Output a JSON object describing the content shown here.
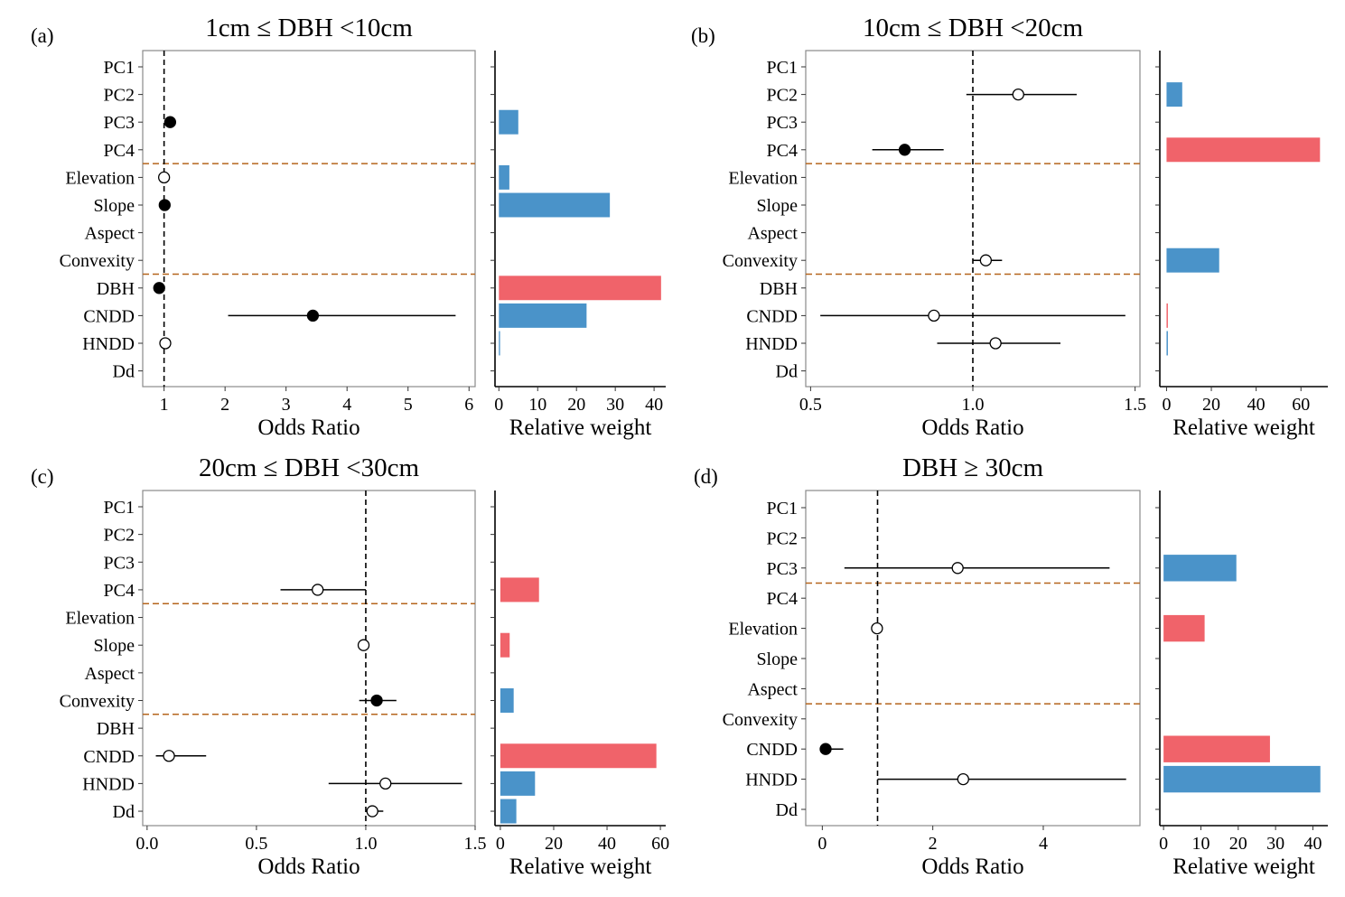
{
  "chart_data": [
    {
      "type": "forest-bar",
      "panel_label": "(a)",
      "title": "1cm ≤ DBH <10cm",
      "categories": [
        "PC1",
        "PC2",
        "PC3",
        "PC4",
        "Elevation",
        "Slope",
        "Aspect",
        "Convexity",
        "DBH",
        "CNDD",
        "HNDD",
        "Dd"
      ],
      "group_breaks_after": [
        "PC4",
        "Convexity"
      ],
      "odds_ratio": {
        "xlabel": "Odds Ratio",
        "xlim": [
          0.65,
          6.1
        ],
        "ticks": [
          1,
          2,
          3,
          4,
          5,
          6
        ],
        "tick_labels": [
          "1",
          "2",
          "3",
          "4",
          "5",
          "6"
        ],
        "reference": 1,
        "points": [
          {
            "var": "PC3",
            "or": 1.1,
            "lo": 1.07,
            "hi": 1.13,
            "significant": true
          },
          {
            "var": "Elevation",
            "or": 1.0,
            "lo": 0.99,
            "hi": 1.01,
            "significant": false
          },
          {
            "var": "Slope",
            "or": 1.01,
            "lo": 0.99,
            "hi": 1.03,
            "significant": true
          },
          {
            "var": "DBH",
            "or": 0.92,
            "lo": 0.9,
            "hi": 0.94,
            "significant": true
          },
          {
            "var": "CNDD",
            "or": 3.44,
            "lo": 2.05,
            "hi": 5.78,
            "significant": true
          },
          {
            "var": "HNDD",
            "or": 1.02,
            "lo": 0.95,
            "hi": 1.1,
            "significant": false
          }
        ]
      },
      "relative_weight": {
        "xlabel": "Relative weight",
        "xlim": [
          -1,
          43
        ],
        "ticks": [
          0,
          10,
          20,
          30,
          40
        ],
        "tick_labels": [
          "0",
          "10",
          "20",
          "30",
          "40"
        ],
        "bars": [
          {
            "var": "PC3",
            "value": 5,
            "color": "#4a93c9"
          },
          {
            "var": "Elevation",
            "value": 2.7,
            "color": "#4a93c9"
          },
          {
            "var": "Slope",
            "value": 28.6,
            "color": "#4a93c9"
          },
          {
            "var": "DBH",
            "value": 41.8,
            "color": "#f0636a"
          },
          {
            "var": "CNDD",
            "value": 22.6,
            "color": "#4a93c9"
          },
          {
            "var": "HNDD",
            "value": 0.3,
            "color": "#4a93c9"
          }
        ]
      }
    },
    {
      "type": "forest-bar",
      "panel_label": "(b)",
      "title": "10cm ≤ DBH <20cm",
      "categories": [
        "PC1",
        "PC2",
        "PC3",
        "PC4",
        "Elevation",
        "Slope",
        "Aspect",
        "Convexity",
        "DBH",
        "CNDD",
        "HNDD",
        "Dd"
      ],
      "group_breaks_after": [
        "PC4",
        "Convexity"
      ],
      "odds_ratio": {
        "xlabel": "Odds Ratio",
        "xlim": [
          0.485,
          1.515
        ],
        "ticks": [
          0.5,
          1.0,
          1.5
        ],
        "tick_labels": [
          "0.5",
          "1.0",
          "1.5"
        ],
        "reference": 1,
        "points": [
          {
            "var": "PC2",
            "or": 1.14,
            "lo": 0.98,
            "hi": 1.32,
            "significant": false
          },
          {
            "var": "PC4",
            "or": 0.79,
            "lo": 0.69,
            "hi": 0.91,
            "significant": true
          },
          {
            "var": "Convexity",
            "or": 1.04,
            "lo": 1.0,
            "hi": 1.09,
            "significant": false
          },
          {
            "var": "CNDD",
            "or": 0.88,
            "lo": 0.53,
            "hi": 1.47,
            "significant": false
          },
          {
            "var": "HNDD",
            "or": 1.07,
            "lo": 0.89,
            "hi": 1.27,
            "significant": false
          }
        ]
      },
      "relative_weight": {
        "xlabel": "Relative weight",
        "xlim": [
          -3,
          72
        ],
        "ticks": [
          0,
          20,
          40,
          60
        ],
        "tick_labels": [
          "0",
          "20",
          "40",
          "60"
        ],
        "bars": [
          {
            "var": "PC2",
            "value": 7,
            "color": "#4a93c9"
          },
          {
            "var": "PC4",
            "value": 68.5,
            "color": "#f0636a"
          },
          {
            "var": "Convexity",
            "value": 23.5,
            "color": "#4a93c9"
          },
          {
            "var": "CNDD",
            "value": 0.6,
            "color": "#f0636a"
          },
          {
            "var": "HNDD",
            "value": 0.6,
            "color": "#4a93c9"
          }
        ]
      }
    },
    {
      "type": "forest-bar",
      "panel_label": "(c)",
      "title": "20cm ≤ DBH <30cm",
      "categories": [
        "PC1",
        "PC2",
        "PC3",
        "PC4",
        "Elevation",
        "Slope",
        "Aspect",
        "Convexity",
        "DBH",
        "CNDD",
        "HNDD",
        "Dd"
      ],
      "group_breaks_after": [
        "PC4",
        "Convexity"
      ],
      "odds_ratio": {
        "xlabel": "Odds Ratio",
        "xlim": [
          -0.02,
          1.5
        ],
        "ticks": [
          0.0,
          0.5,
          1.0,
          1.5
        ],
        "tick_labels": [
          "0.0",
          "0.5",
          "1.0",
          "1.5"
        ],
        "reference": 1,
        "points": [
          {
            "var": "PC4",
            "or": 0.78,
            "lo": 0.61,
            "hi": 1.0,
            "significant": false
          },
          {
            "var": "Slope",
            "or": 0.99,
            "lo": 0.98,
            "hi": 1.0,
            "significant": false
          },
          {
            "var": "Convexity",
            "or": 1.05,
            "lo": 0.97,
            "hi": 1.14,
            "significant": true
          },
          {
            "var": "CNDD",
            "or": 0.1,
            "lo": 0.04,
            "hi": 0.27,
            "significant": false
          },
          {
            "var": "HNDD",
            "or": 1.09,
            "lo": 0.83,
            "hi": 1.44,
            "significant": false
          },
          {
            "var": "Dd",
            "or": 1.03,
            "lo": 1.0,
            "hi": 1.08,
            "significant": false
          }
        ]
      },
      "relative_weight": {
        "xlabel": "Relative weight",
        "xlim": [
          -2,
          62
        ],
        "ticks": [
          0,
          20,
          40,
          60
        ],
        "tick_labels": [
          "0",
          "20",
          "40",
          "60"
        ],
        "bars": [
          {
            "var": "PC4",
            "value": 14.5,
            "color": "#f0636a"
          },
          {
            "var": "Slope",
            "value": 3.5,
            "color": "#f0636a"
          },
          {
            "var": "Convexity",
            "value": 5,
            "color": "#4a93c9"
          },
          {
            "var": "CNDD",
            "value": 58.5,
            "color": "#f0636a"
          },
          {
            "var": "HNDD",
            "value": 13,
            "color": "#4a93c9"
          },
          {
            "var": "Dd",
            "value": 6,
            "color": "#4a93c9"
          }
        ]
      }
    },
    {
      "type": "forest-bar",
      "panel_label": "(d)",
      "title": "DBH ≥ 30cm",
      "categories": [
        "PC1",
        "PC2",
        "PC3",
        "PC4",
        "Elevation",
        "Slope",
        "Aspect",
        "Convexity",
        "CNDD",
        "HNDD",
        "Dd"
      ],
      "group_breaks_after": [
        "PC3",
        "Aspect"
      ],
      "odds_ratio": {
        "xlabel": "Odds Ratio",
        "xlim": [
          -0.3,
          5.75
        ],
        "ticks": [
          0,
          2,
          4
        ],
        "tick_labels": [
          "0",
          "2",
          "4"
        ],
        "reference": 1,
        "points": [
          {
            "var": "PC3",
            "or": 2.45,
            "lo": 0.4,
            "hi": 5.2,
            "significant": false
          },
          {
            "var": "Elevation",
            "or": 0.99,
            "lo": 0.9,
            "hi": 1.08,
            "significant": false
          },
          {
            "var": "CNDD",
            "or": 0.06,
            "lo": 0.02,
            "hi": 0.38,
            "significant": true
          },
          {
            "var": "HNDD",
            "or": 2.55,
            "lo": 1.0,
            "hi": 5.5,
            "significant": false
          }
        ]
      },
      "relative_weight": {
        "xlabel": "Relative weight",
        "xlim": [
          -1,
          44
        ],
        "ticks": [
          0,
          10,
          20,
          30,
          40
        ],
        "tick_labels": [
          "0",
          "10",
          "20",
          "30",
          "40"
        ],
        "bars": [
          {
            "var": "PC3",
            "value": 19.5,
            "color": "#4a93c9"
          },
          {
            "var": "Elevation",
            "value": 11,
            "color": "#f0636a"
          },
          {
            "var": "CNDD",
            "value": 28.5,
            "color": "#f0636a"
          },
          {
            "var": "HNDD",
            "value": 42,
            "color": "#4a93c9"
          }
        ]
      }
    }
  ]
}
